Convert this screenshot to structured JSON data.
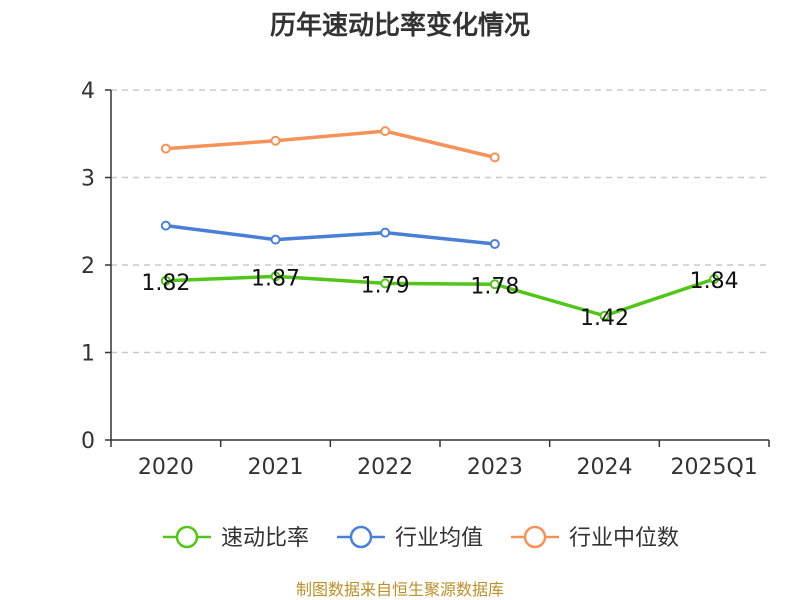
{
  "chart_data": {
    "type": "line",
    "title": "历年速动比率变化情况",
    "categories": [
      "2020",
      "2021",
      "2022",
      "2023",
      "2024",
      "2025Q1"
    ],
    "ylim": [
      0,
      4
    ],
    "yticks": [
      0,
      1,
      2,
      3,
      4
    ],
    "grid": true,
    "legend_position": "bottom",
    "series": [
      {
        "name": "速动比率",
        "color": "#52c41a",
        "show_labels": true,
        "values": [
          1.82,
          1.87,
          1.79,
          1.78,
          1.42,
          1.84
        ]
      },
      {
        "name": "行业均值",
        "color": "#4a7fd8",
        "show_labels": false,
        "values": [
          2.45,
          2.29,
          2.37,
          2.24,
          null,
          null
        ]
      },
      {
        "name": "行业中位数",
        "color": "#f5925a",
        "show_labels": false,
        "values": [
          3.33,
          3.42,
          3.53,
          3.23,
          null,
          null
        ]
      }
    ]
  },
  "source": "制图数据来自恒生聚源数据库"
}
